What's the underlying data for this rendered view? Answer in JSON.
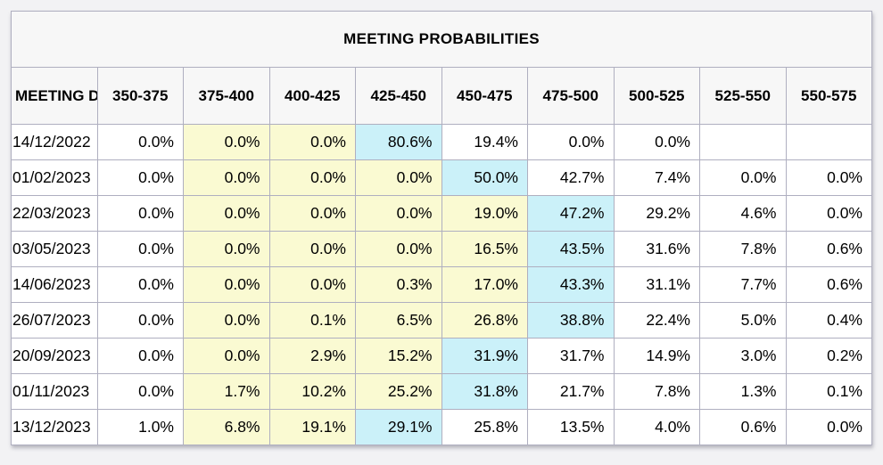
{
  "page": {
    "background_color": "#f2f2f4",
    "grid_line_color": "#afafc0",
    "header_background": "#f7f7f7"
  },
  "chart_data": {
    "type": "table",
    "title": "MEETING PROBABILITIES",
    "columns": [
      "MEETING DATE",
      "350-375",
      "375-400",
      "400-425",
      "425-450",
      "450-475",
      "475-500",
      "500-525",
      "525-550",
      "550-575"
    ],
    "highlight_colors": {
      "none": "#FFFFFF",
      "yellow": "#FAFAD2",
      "blue": "#CBF1F9"
    },
    "rows": [
      {
        "date": "14/12/2022",
        "values": [
          "0.0%",
          "0.0%",
          "0.0%",
          "80.6%",
          "19.4%",
          "0.0%",
          "0.0%",
          "",
          ""
        ],
        "highlights": [
          "none",
          "yellow",
          "yellow",
          "blue",
          "none",
          "none",
          "none",
          "none",
          "none"
        ]
      },
      {
        "date": "01/02/2023",
        "values": [
          "0.0%",
          "0.0%",
          "0.0%",
          "0.0%",
          "50.0%",
          "42.7%",
          "7.4%",
          "0.0%",
          "0.0%"
        ],
        "highlights": [
          "none",
          "yellow",
          "yellow",
          "yellow",
          "blue",
          "none",
          "none",
          "none",
          "none"
        ]
      },
      {
        "date": "22/03/2023",
        "values": [
          "0.0%",
          "0.0%",
          "0.0%",
          "0.0%",
          "19.0%",
          "47.2%",
          "29.2%",
          "4.6%",
          "0.0%"
        ],
        "highlights": [
          "none",
          "yellow",
          "yellow",
          "yellow",
          "yellow",
          "blue",
          "none",
          "none",
          "none"
        ]
      },
      {
        "date": "03/05/2023",
        "values": [
          "0.0%",
          "0.0%",
          "0.0%",
          "0.0%",
          "16.5%",
          "43.5%",
          "31.6%",
          "7.8%",
          "0.6%"
        ],
        "highlights": [
          "none",
          "yellow",
          "yellow",
          "yellow",
          "yellow",
          "blue",
          "none",
          "none",
          "none"
        ]
      },
      {
        "date": "14/06/2023",
        "values": [
          "0.0%",
          "0.0%",
          "0.0%",
          "0.3%",
          "17.0%",
          "43.3%",
          "31.1%",
          "7.7%",
          "0.6%"
        ],
        "highlights": [
          "none",
          "yellow",
          "yellow",
          "yellow",
          "yellow",
          "blue",
          "none",
          "none",
          "none"
        ]
      },
      {
        "date": "26/07/2023",
        "values": [
          "0.0%",
          "0.0%",
          "0.1%",
          "6.5%",
          "26.8%",
          "38.8%",
          "22.4%",
          "5.0%",
          "0.4%"
        ],
        "highlights": [
          "none",
          "yellow",
          "yellow",
          "yellow",
          "yellow",
          "blue",
          "none",
          "none",
          "none"
        ]
      },
      {
        "date": "20/09/2023",
        "values": [
          "0.0%",
          "0.0%",
          "2.9%",
          "15.2%",
          "31.9%",
          "31.7%",
          "14.9%",
          "3.0%",
          "0.2%"
        ],
        "highlights": [
          "none",
          "yellow",
          "yellow",
          "yellow",
          "blue",
          "none",
          "none",
          "none",
          "none"
        ]
      },
      {
        "date": "01/11/2023",
        "values": [
          "0.0%",
          "1.7%",
          "10.2%",
          "25.2%",
          "31.8%",
          "21.7%",
          "7.8%",
          "1.3%",
          "0.1%"
        ],
        "highlights": [
          "none",
          "yellow",
          "yellow",
          "yellow",
          "blue",
          "none",
          "none",
          "none",
          "none"
        ]
      },
      {
        "date": "13/12/2023",
        "values": [
          "1.0%",
          "6.8%",
          "19.1%",
          "29.1%",
          "25.8%",
          "13.5%",
          "4.0%",
          "0.6%",
          "0.0%"
        ],
        "highlights": [
          "none",
          "yellow",
          "yellow",
          "blue",
          "none",
          "none",
          "none",
          "none",
          "none"
        ]
      }
    ]
  }
}
